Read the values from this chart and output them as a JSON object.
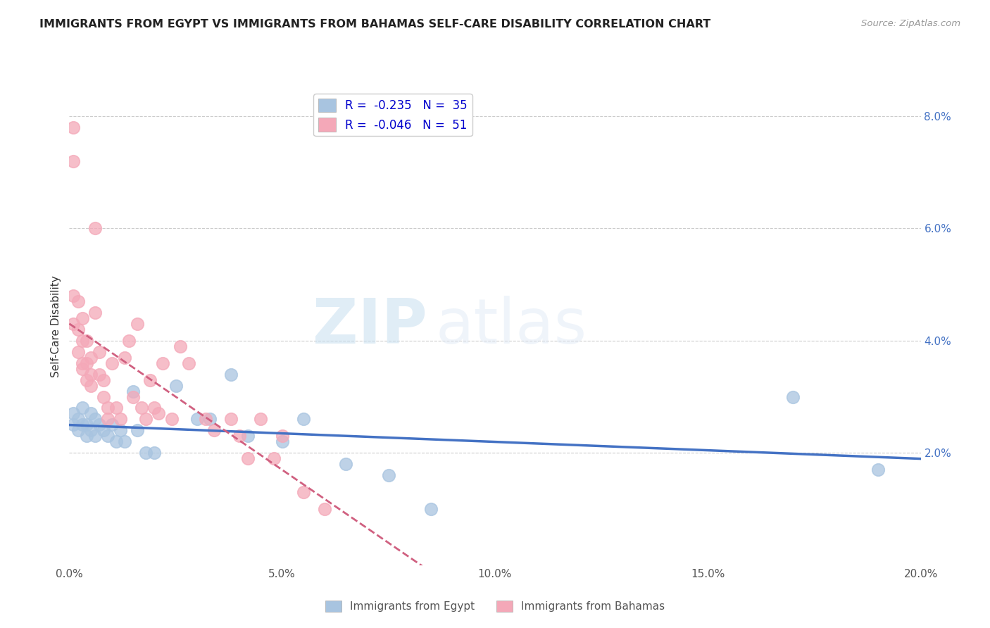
{
  "title": "IMMIGRANTS FROM EGYPT VS IMMIGRANTS FROM BAHAMAS SELF-CARE DISABILITY CORRELATION CHART",
  "source": "Source: ZipAtlas.com",
  "ylabel": "Self-Care Disability",
  "xlim": [
    0.0,
    0.2
  ],
  "ylim": [
    0.0,
    0.085
  ],
  "legend_r_egypt": "-0.235",
  "legend_n_egypt": "35",
  "legend_r_bahamas": "-0.046",
  "legend_n_bahamas": "51",
  "egypt_color": "#a8c4e0",
  "bahamas_color": "#f4a8b8",
  "egypt_line_color": "#4472c4",
  "bahamas_line_color": "#d06080",
  "watermark_zip": "ZIP",
  "watermark_atlas": "atlas",
  "egypt_x": [
    0.001,
    0.001,
    0.002,
    0.002,
    0.003,
    0.003,
    0.004,
    0.004,
    0.005,
    0.005,
    0.006,
    0.006,
    0.007,
    0.008,
    0.009,
    0.01,
    0.011,
    0.012,
    0.013,
    0.015,
    0.016,
    0.018,
    0.02,
    0.025,
    0.03,
    0.033,
    0.038,
    0.042,
    0.05,
    0.055,
    0.065,
    0.075,
    0.085,
    0.17,
    0.19
  ],
  "egypt_y": [
    0.027,
    0.025,
    0.026,
    0.024,
    0.028,
    0.025,
    0.025,
    0.023,
    0.027,
    0.024,
    0.026,
    0.023,
    0.025,
    0.024,
    0.023,
    0.025,
    0.022,
    0.024,
    0.022,
    0.031,
    0.024,
    0.02,
    0.02,
    0.032,
    0.026,
    0.026,
    0.034,
    0.023,
    0.022,
    0.026,
    0.018,
    0.016,
    0.01,
    0.03,
    0.017
  ],
  "bahamas_x": [
    0.001,
    0.001,
    0.001,
    0.001,
    0.002,
    0.002,
    0.002,
    0.003,
    0.003,
    0.003,
    0.003,
    0.004,
    0.004,
    0.004,
    0.005,
    0.005,
    0.005,
    0.006,
    0.006,
    0.007,
    0.007,
    0.008,
    0.008,
    0.009,
    0.009,
    0.01,
    0.011,
    0.012,
    0.013,
    0.014,
    0.015,
    0.016,
    0.017,
    0.018,
    0.019,
    0.02,
    0.021,
    0.022,
    0.024,
    0.026,
    0.028,
    0.032,
    0.034,
    0.038,
    0.04,
    0.042,
    0.045,
    0.048,
    0.05,
    0.055,
    0.06
  ],
  "bahamas_y": [
    0.078,
    0.072,
    0.048,
    0.043,
    0.047,
    0.042,
    0.038,
    0.044,
    0.04,
    0.036,
    0.035,
    0.04,
    0.036,
    0.033,
    0.037,
    0.034,
    0.032,
    0.06,
    0.045,
    0.038,
    0.034,
    0.033,
    0.03,
    0.028,
    0.026,
    0.036,
    0.028,
    0.026,
    0.037,
    0.04,
    0.03,
    0.043,
    0.028,
    0.026,
    0.033,
    0.028,
    0.027,
    0.036,
    0.026,
    0.039,
    0.036,
    0.026,
    0.024,
    0.026,
    0.023,
    0.019,
    0.026,
    0.019,
    0.023,
    0.013,
    0.01
  ]
}
